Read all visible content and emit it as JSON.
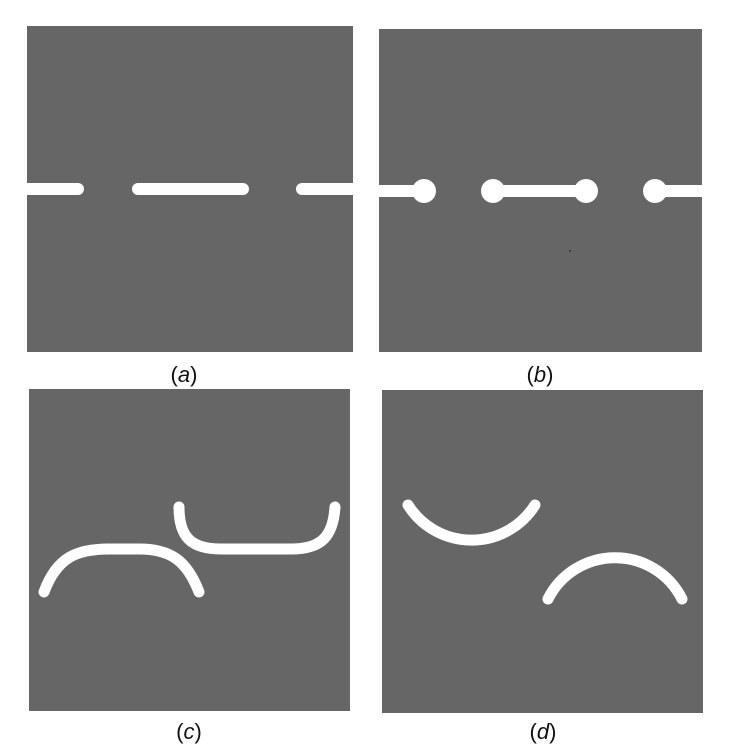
{
  "colors": {
    "panel_background": "#666666",
    "crack": "#ffffff",
    "page_background": "#ffffff"
  },
  "panels": [
    {
      "id": "a",
      "letter": "a",
      "open": "(",
      "close": ")"
    },
    {
      "id": "b",
      "letter": "b",
      "open": "(",
      "close": ")"
    },
    {
      "id": "c",
      "letter": "c",
      "open": "(",
      "close": ")"
    },
    {
      "id": "d",
      "letter": "d",
      "open": "(",
      "close": ")"
    }
  ]
}
